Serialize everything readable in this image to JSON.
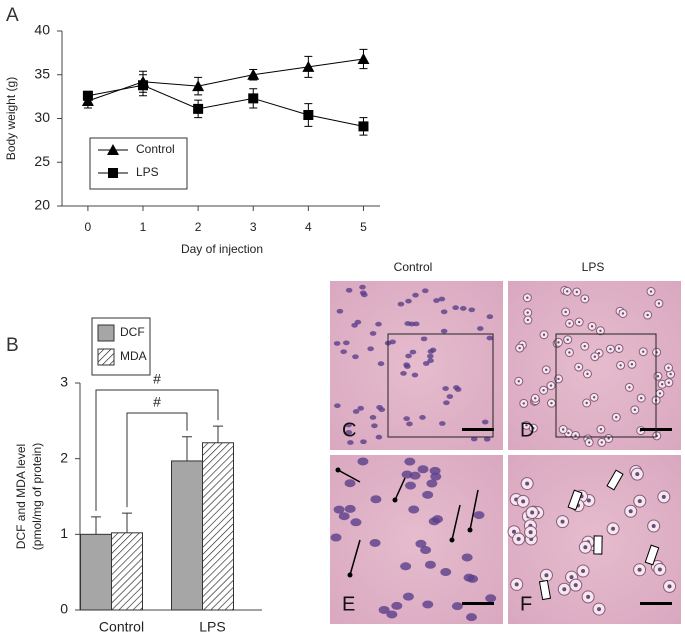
{
  "panels": [
    "A",
    "B"
  ],
  "micrographs": {
    "columns": [
      "Control",
      "LPS"
    ],
    "labels": [
      "C",
      "D",
      "E",
      "F"
    ]
  },
  "chart_data": [
    {
      "type": "line",
      "xlabel": "Day of injection",
      "ylabel": "Body weight (g)",
      "x": [
        0,
        1,
        2,
        3,
        4,
        5
      ],
      "xlim": [
        -0.47,
        5.3
      ],
      "xticks": [
        0,
        1,
        2,
        3,
        4,
        5
      ],
      "ylim": [
        20,
        40
      ],
      "yticks": [
        20,
        25,
        30,
        35,
        40
      ],
      "series": [
        {
          "name": "Control",
          "color": "#000000",
          "marker": "triangle",
          "values": [
            32.0,
            34.2,
            33.7,
            35.0,
            35.9,
            36.8
          ],
          "errors": [
            0.8,
            1.2,
            1.0,
            0.6,
            1.2,
            1.1
          ]
        },
        {
          "name": "LPS",
          "color": "#000000",
          "marker": "square",
          "values": [
            32.6,
            33.8,
            31.1,
            32.3,
            30.4,
            29.1
          ],
          "errors": [
            0.5,
            1.2,
            1.0,
            1.1,
            1.3,
            1.0
          ]
        }
      ]
    },
    {
      "type": "bar",
      "ylabel": [
        "DCF and MDA level",
        "(pmol/mg of protein)"
      ],
      "categories": [
        "Control",
        "LPS"
      ],
      "ylim": [
        0,
        3
      ],
      "yticks": [
        0,
        1,
        2,
        3
      ],
      "annotations": [
        "#",
        "#"
      ],
      "series": [
        {
          "name": "DCF",
          "color": "#a6a6a6",
          "hatch": false,
          "values": [
            1.0,
            1.97
          ],
          "errors": [
            0.23,
            0.32
          ]
        },
        {
          "name": "MDA",
          "color": "#ffffff",
          "hatch": true,
          "values": [
            1.02,
            2.21
          ],
          "errors": [
            0.26,
            0.22
          ]
        }
      ]
    }
  ]
}
